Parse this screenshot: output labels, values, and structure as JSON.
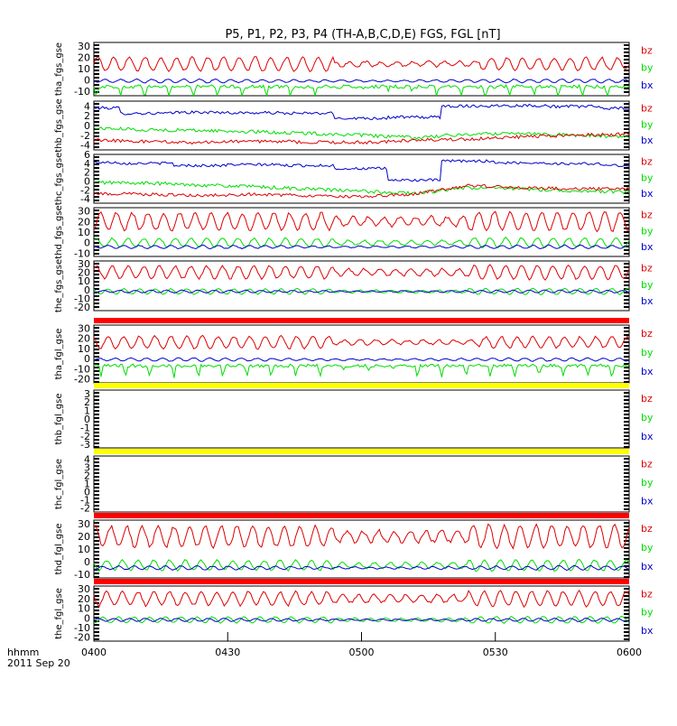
{
  "title": "P5, P1, P2, P3, P4 (TH-A,B,C,D,E) FGS, FGL [nT]",
  "footer": {
    "axis_unit": "hhmm",
    "date": "2011 Sep 20"
  },
  "colors": {
    "bz": "#dd0000",
    "by": "#00dd00",
    "bx": "#0000cc",
    "bar_red": "#ff0000",
    "bar_yellow": "#ffff00",
    "tick": "#000000"
  },
  "chart_data": {
    "type": "line",
    "x_ticks": [
      "0400",
      "0430",
      "0500",
      "0530",
      "0600"
    ],
    "x_range": [
      "04:00",
      "06:00"
    ],
    "legend": [
      "bz",
      "by",
      "bx"
    ],
    "panels": [
      {
        "label": "tha_fgs_gse",
        "y_ticks": [
          30,
          20,
          10,
          0,
          -10
        ],
        "ylim": [
          -14,
          33
        ],
        "bar_above": null,
        "series": [
          {
            "name": "bz",
            "kind": "wave",
            "base": 14,
            "amp": 6,
            "envelope": "storm_a"
          },
          {
            "name": "by",
            "kind": "dips",
            "base": -6,
            "amp": 3,
            "depth": 9
          },
          {
            "name": "bx",
            "kind": "wave",
            "base": -1,
            "amp": 2,
            "envelope": "flat"
          }
        ]
      },
      {
        "label": "thb_fgs_gse",
        "y_ticks": [
          4,
          2,
          0,
          -2,
          -4
        ],
        "ylim": [
          -5,
          5
        ],
        "bar_above": null,
        "series": [
          {
            "name": "bx",
            "kind": "step",
            "values": [
              3.6,
              2.5,
              2.7,
              2.6,
              2.5,
              1.5,
              1.7,
              4.0,
              4.1,
              3.9,
              3.5
            ],
            "noise": 0.3
          },
          {
            "name": "by",
            "kind": "trend",
            "values": [
              -0.5,
              -0.9,
              -1.0,
              -1.3,
              -1.6,
              -2.0,
              -2.5,
              -1.8,
              -1.5,
              -2.0,
              -2.3
            ],
            "noise": 0.35
          },
          {
            "name": "bz",
            "kind": "trend",
            "values": [
              -3.0,
              -3.3,
              -3.5,
              -3.2,
              -3.4,
              -3.5,
              -3.0,
              -2.8,
              -2.3,
              -2.0,
              -1.8
            ],
            "noise": 0.35
          }
        ]
      },
      {
        "label": "thc_fgs_gse",
        "y_ticks": [
          6,
          4,
          2,
          0,
          -2,
          -4
        ],
        "ylim": [
          -5,
          6
        ],
        "bar_above": null,
        "series": [
          {
            "name": "bx",
            "kind": "step",
            "values": [
              4.2,
              4.0,
              3.5,
              3.7,
              3.5,
              2.8,
              0.2,
              4.5,
              4.1,
              3.9,
              3.5
            ],
            "noise": 0.3
          },
          {
            "name": "by",
            "kind": "trend",
            "values": [
              -0.3,
              -0.5,
              -0.9,
              -1.3,
              -1.8,
              -2.3,
              -2.8,
              -1.5,
              -1.8,
              -2.2,
              -2.5
            ],
            "noise": 0.4
          },
          {
            "name": "bz",
            "kind": "trend",
            "values": [
              -2.8,
              -3.0,
              -3.3,
              -3.0,
              -3.3,
              -3.5,
              -3.0,
              -1.0,
              -1.5,
              -1.7,
              -1.8
            ],
            "noise": 0.35
          }
        ]
      },
      {
        "label": "thd_fgs_gse",
        "y_ticks": [
          30,
          20,
          10,
          0,
          -10
        ],
        "ylim": [
          -13,
          33
        ],
        "bar_above": null,
        "series": [
          {
            "name": "bz",
            "kind": "wave",
            "base": 20,
            "amp": 8,
            "envelope": "storm_b"
          },
          {
            "name": "by",
            "kind": "wave",
            "base": 0,
            "amp": 4,
            "envelope": "storm_b"
          },
          {
            "name": "bx",
            "kind": "wave",
            "base": -4,
            "amp": 2,
            "envelope": "flat"
          }
        ]
      },
      {
        "label": "the_fgs_gse",
        "y_ticks": [
          30,
          20,
          10,
          0,
          -10,
          -20
        ],
        "ylim": [
          -24,
          33
        ],
        "bar_above": null,
        "series": [
          {
            "name": "bz",
            "kind": "wave",
            "base": 20,
            "amp": 7,
            "envelope": "storm_b"
          },
          {
            "name": "by",
            "kind": "wave",
            "base": -2,
            "amp": 3,
            "envelope": "storm_b"
          },
          {
            "name": "bx",
            "kind": "wave",
            "base": -2,
            "amp": 2,
            "envelope": "flat"
          }
        ]
      },
      {
        "label": "tha_fgl_gse",
        "y_ticks": [
          30,
          20,
          10,
          0,
          -10,
          -20
        ],
        "ylim": [
          -24,
          33
        ],
        "bar_above": "red",
        "series": [
          {
            "name": "bz",
            "kind": "wave",
            "base": 16,
            "amp": 6,
            "envelope": "storm_a"
          },
          {
            "name": "by",
            "kind": "dips",
            "base": -7,
            "amp": 3,
            "depth": 11
          },
          {
            "name": "bx",
            "kind": "wave",
            "base": -1,
            "amp": 2,
            "envelope": "flat"
          }
        ]
      },
      {
        "label": "thb_fgl_gse",
        "y_ticks": [
          3,
          2,
          1,
          0,
          -1,
          -2,
          -3
        ],
        "ylim": [
          -3.4,
          3.4
        ],
        "bar_above": "yellow",
        "series": []
      },
      {
        "label": "thc_fgl_gse",
        "y_ticks": [
          4,
          3,
          2,
          1,
          0,
          -1,
          -2
        ],
        "ylim": [
          -2.5,
          4.4
        ],
        "bar_above": "yellow",
        "series": []
      },
      {
        "label": "thd_fgl_gse",
        "y_ticks": [
          30,
          20,
          10,
          0,
          -10
        ],
        "ylim": [
          -13,
          33
        ],
        "bar_above": "red",
        "series": [
          {
            "name": "bz",
            "kind": "wave",
            "base": 20,
            "amp": 8,
            "envelope": "storm_b"
          },
          {
            "name": "by",
            "kind": "wave",
            "base": -3,
            "amp": 4,
            "envelope": "storm_b"
          },
          {
            "name": "bx",
            "kind": "wave",
            "base": -5,
            "amp": 2,
            "envelope": "flat"
          }
        ]
      },
      {
        "label": "the_fgl_gse",
        "y_ticks": [
          30,
          20,
          10,
          0,
          -10,
          -20
        ],
        "ylim": [
          -24,
          33
        ],
        "bar_above": "red",
        "series": [
          {
            "name": "bz",
            "kind": "wave",
            "base": 20,
            "amp": 7,
            "envelope": "storm_b"
          },
          {
            "name": "by",
            "kind": "wave",
            "base": -2,
            "amp": 3,
            "envelope": "storm_b"
          },
          {
            "name": "bx",
            "kind": "wave",
            "base": -2,
            "amp": 2,
            "envelope": "flat"
          }
        ]
      }
    ]
  }
}
